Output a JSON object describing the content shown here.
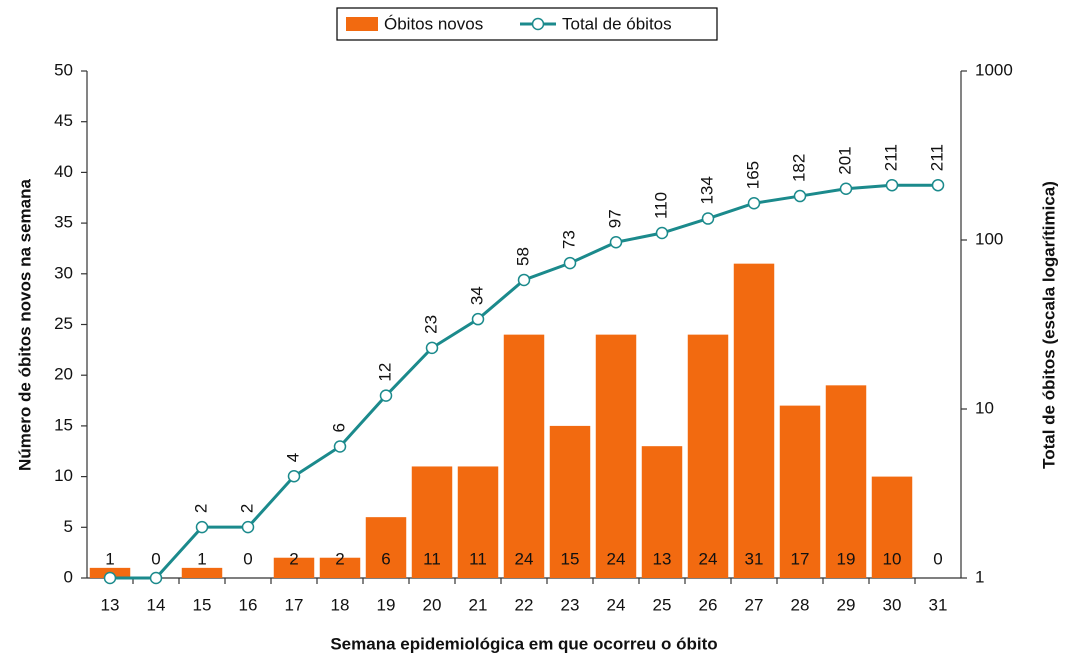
{
  "chart_data": {
    "type": "combo",
    "x_label": "Semana epidemiológica em que ocorreu o óbito",
    "y_label": "Número de óbitos novos na semana",
    "y2_label": "Total de óbitos (escala logarítimica)",
    "categories": [
      "13",
      "14",
      "15",
      "16",
      "17",
      "18",
      "19",
      "20",
      "21",
      "22",
      "23",
      "24",
      "25",
      "26",
      "27",
      "28",
      "29",
      "30",
      "31"
    ],
    "series": [
      {
        "name": "Óbitos novos",
        "type": "bar",
        "color": "#f26a10",
        "values": [
          1,
          0,
          1,
          0,
          2,
          2,
          6,
          11,
          11,
          24,
          15,
          24,
          13,
          24,
          31,
          17,
          19,
          10,
          0
        ]
      },
      {
        "name": "Total de óbitos",
        "type": "line",
        "axis": "y2",
        "color": "#1b8a8c",
        "values": [
          1,
          1,
          2,
          2,
          4,
          6,
          12,
          23,
          34,
          58,
          73,
          97,
          110,
          134,
          165,
          182,
          201,
          211,
          211
        ],
        "value_labels": [
          null,
          null,
          "2",
          "2",
          "4",
          "6",
          "12",
          "23",
          "34",
          "58",
          "73",
          "97",
          "110",
          "134",
          "165",
          "182",
          "201",
          "211",
          "211"
        ]
      }
    ],
    "ylim": [
      0,
      50
    ],
    "yticks": [
      0,
      5,
      10,
      15,
      20,
      25,
      30,
      35,
      40,
      45,
      50
    ],
    "y2lim": [
      1,
      1000
    ],
    "y2ticks": [
      1,
      10,
      100,
      1000
    ],
    "y2log": true,
    "legend": "top"
  }
}
